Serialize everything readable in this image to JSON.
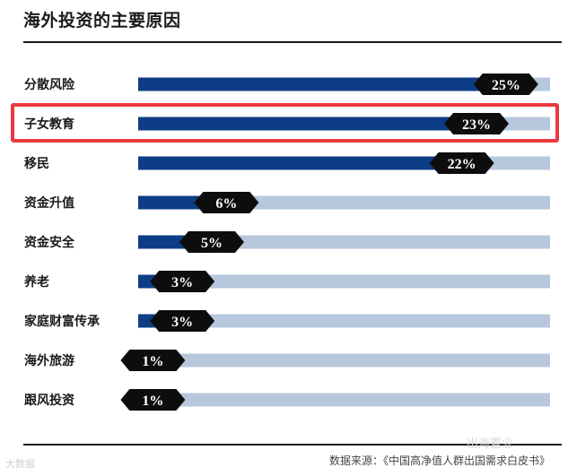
{
  "chart_data": {
    "type": "bar",
    "orientation": "horizontal",
    "title": "海外投资的主要原因",
    "categories": [
      "分散风险",
      "子女教育",
      "移民",
      "资金升值",
      "资金安全",
      "养老",
      "家庭财富传承",
      "海外旅游",
      "跟风投资"
    ],
    "values": [
      25,
      23,
      22,
      6,
      5,
      3,
      3,
      1,
      1
    ],
    "value_labels": [
      "25%",
      "23%",
      "22%",
      "6%",
      "5%",
      "3%",
      "3%",
      "1%",
      "1%"
    ],
    "xlim": [
      0,
      28
    ],
    "highlighted_category": "子女教育",
    "colors": {
      "bar": "#0d3d84",
      "track": "#b7c8dc",
      "label_bg": "#0d0d0d",
      "highlight": "#e8393e"
    }
  },
  "footer": {
    "source": "数据来源：《中国高净值人群出国需求白皮书》",
    "watermark_left": "大数据",
    "watermark_right": "出海置业"
  }
}
